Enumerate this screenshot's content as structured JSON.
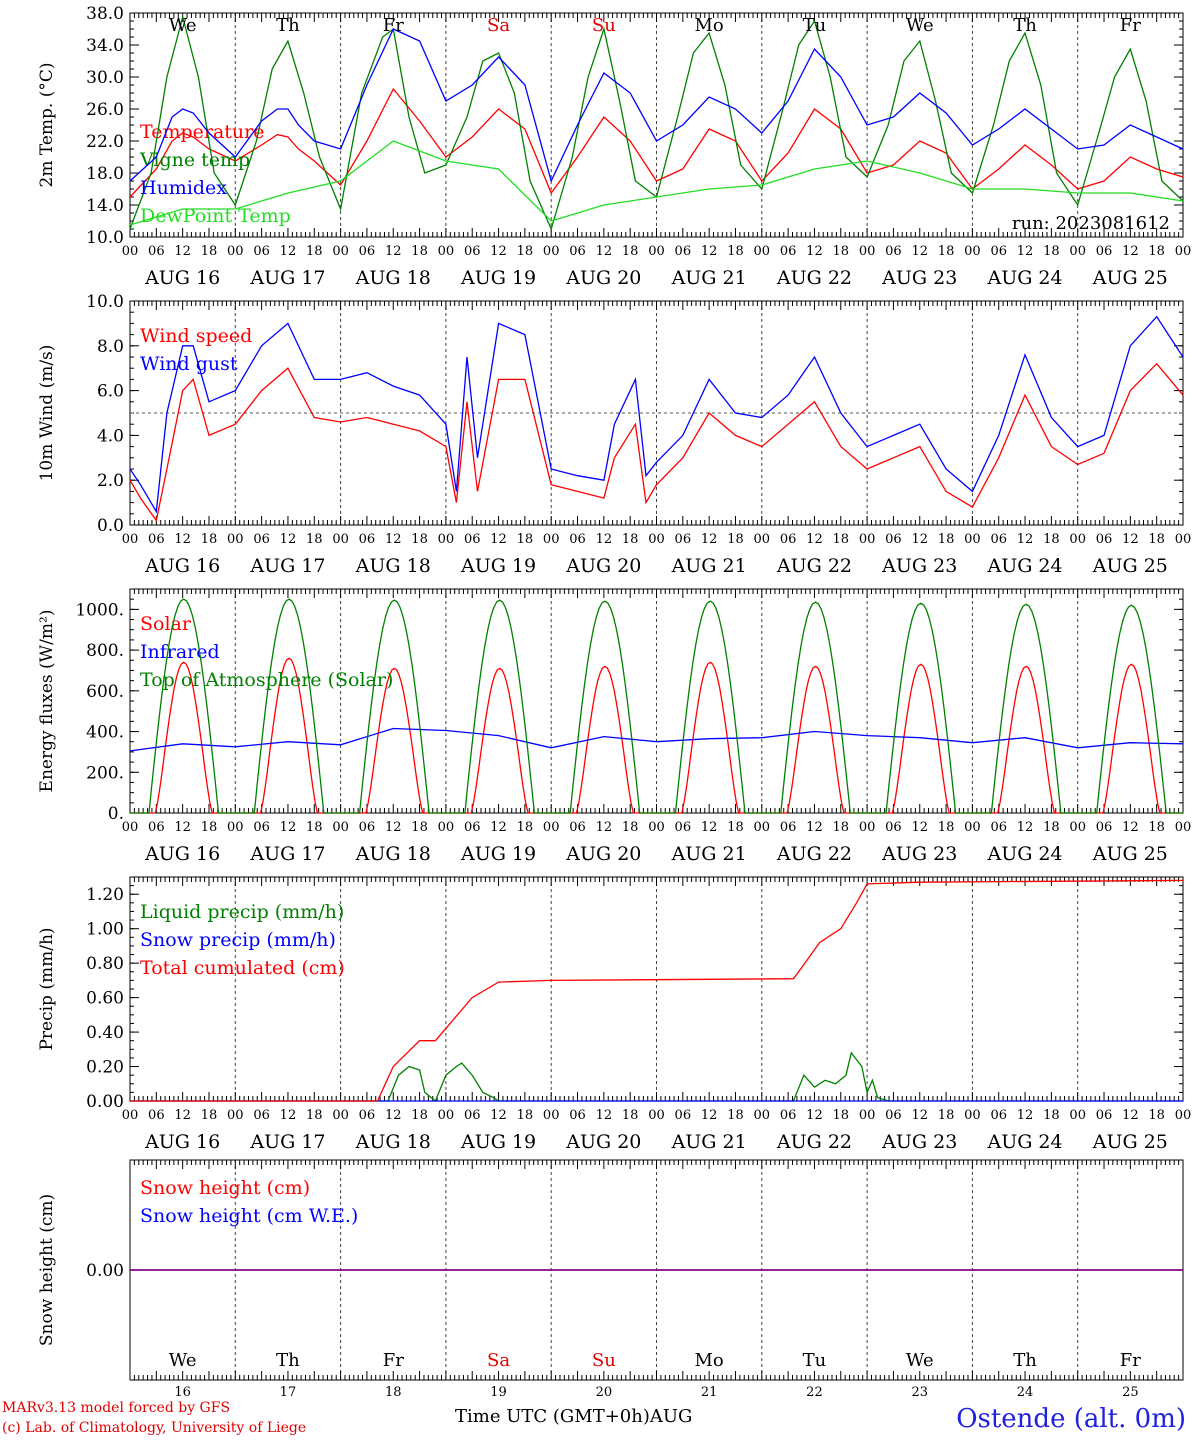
{
  "days": [
    "We",
    "Th",
    "Fr",
    "Sa",
    "Su",
    "Mo",
    "Tu",
    "We",
    "Th",
    "Fr"
  ],
  "weekend_days": [
    "Sa",
    "Su"
  ],
  "dates": [
    "AUG 16",
    "AUG 17",
    "AUG 18",
    "AUG 19",
    "AUG 20",
    "AUG 21",
    "AUG 22",
    "AUG 23",
    "AUG 24",
    "AUG 25"
  ],
  "date_numbers": [
    "16",
    "17",
    "18",
    "19",
    "20",
    "21",
    "22",
    "23",
    "24",
    "25"
  ],
  "hour_ticks": [
    "00",
    "06",
    "12",
    "18"
  ],
  "final_hour_tick": "00",
  "colors": {
    "red": "#ff0000",
    "green": "#008000",
    "blue": "#0000ff",
    "lightgreen": "#22dd22",
    "purple": "#800080",
    "day_red": "#e00000"
  },
  "footer": {
    "model": "MARv3.13 model forced by GFS",
    "credit": "(c) Lab. of Climatology, University of Liege",
    "xlabel": "Time UTC (GMT+0h)",
    "month": "AUG",
    "location": "Ostende (alt. 0m)"
  },
  "chart_data": [
    {
      "type": "line",
      "id": "temperature",
      "ylabel": "2m Temp. (°C)",
      "ylim": [
        10,
        38
      ],
      "yticks": [
        "10.0",
        "14.0",
        "18.0",
        "22.0",
        "26.0",
        "30.0",
        "34.0",
        "38.0"
      ],
      "run_label": "run: 2023081612",
      "x_unit": "days since AUG 16 00 UTC",
      "series": [
        {
          "name": "Temperature",
          "color": "red",
          "x": [
            0,
            0.25,
            0.4,
            0.5,
            0.6,
            0.75,
            1,
            1.25,
            1.4,
            1.5,
            1.6,
            1.75,
            2,
            2.25,
            2.5,
            2.75,
            3,
            3.25,
            3.5,
            3.75,
            4,
            4.25,
            4.5,
            4.75,
            5,
            5.25,
            5.5,
            5.75,
            6,
            6.25,
            6.5,
            6.75,
            7,
            7.25,
            7.5,
            7.75,
            8,
            8.25,
            8.5,
            8.75,
            9,
            9.25,
            9.5,
            9.75,
            10
          ],
          "y": [
            15,
            18.5,
            22,
            23,
            22.5,
            21,
            19.5,
            21.5,
            22.8,
            22.5,
            21,
            19.5,
            16.5,
            22,
            28.5,
            24.5,
            20,
            22.5,
            26,
            23.5,
            15.5,
            20,
            25,
            22,
            17,
            18.5,
            23.5,
            22,
            17,
            20.5,
            26,
            23.5,
            18,
            19,
            22,
            20.5,
            16,
            18.5,
            21.5,
            19,
            16,
            17,
            20,
            18.5,
            17.5
          ]
        },
        {
          "name": "Vigne temp",
          "color": "green",
          "x": [
            0,
            0.2,
            0.35,
            0.5,
            0.65,
            0.8,
            1,
            1.2,
            1.35,
            1.5,
            1.65,
            1.8,
            2,
            2.2,
            2.4,
            2.5,
            2.65,
            2.8,
            3,
            3.2,
            3.35,
            3.5,
            3.65,
            3.8,
            4,
            4.2,
            4.35,
            4.5,
            4.65,
            4.8,
            5,
            5.2,
            5.35,
            5.5,
            5.65,
            5.8,
            6,
            6.2,
            6.35,
            6.5,
            6.65,
            6.8,
            7,
            7.2,
            7.35,
            7.5,
            7.65,
            7.8,
            8,
            8.2,
            8.35,
            8.5,
            8.65,
            8.8,
            9,
            9.2,
            9.35,
            9.5,
            9.65,
            9.8,
            10
          ],
          "y": [
            11,
            18,
            30,
            37.5,
            30,
            18,
            14,
            22,
            31,
            34.5,
            28,
            20,
            13.5,
            28,
            35,
            36,
            25,
            18,
            19,
            25,
            32,
            33,
            28,
            17,
            11,
            20,
            30,
            36,
            27,
            17,
            15,
            25,
            33,
            35.5,
            29,
            19,
            16,
            26,
            34,
            37,
            30,
            20,
            17.5,
            24,
            32,
            34.5,
            27,
            18,
            15.5,
            24,
            32,
            35.5,
            29,
            18,
            14,
            23,
            30,
            33.5,
            27,
            17,
            14.5
          ]
        },
        {
          "name": "Humidex",
          "color": "blue",
          "x": [
            0,
            0.25,
            0.4,
            0.5,
            0.6,
            0.75,
            1,
            1.25,
            1.4,
            1.5,
            1.6,
            1.75,
            2,
            2.25,
            2.5,
            2.75,
            3,
            3.25,
            3.5,
            3.75,
            4,
            4.25,
            4.5,
            4.75,
            5,
            5.25,
            5.5,
            5.75,
            6,
            6.25,
            6.5,
            6.75,
            7,
            7.25,
            7.5,
            7.75,
            8,
            8.25,
            8.5,
            8.75,
            9,
            9.25,
            9.5,
            9.75,
            10
          ],
          "y": [
            17,
            20,
            25,
            26,
            25.5,
            23,
            20,
            24.5,
            26,
            26,
            24,
            22,
            21,
            29,
            36,
            34.5,
            27,
            29,
            32.5,
            29,
            17,
            24,
            30.5,
            28,
            22,
            24,
            27.5,
            26,
            23,
            27,
            33.5,
            30,
            24,
            25,
            28,
            25.5,
            21.5,
            23.5,
            26,
            23.5,
            21,
            21.5,
            24,
            22.5,
            21
          ]
        },
        {
          "name": "DewPoint Temp",
          "color": "lightgreen",
          "x": [
            0,
            0.5,
            1,
            1.5,
            2,
            2.5,
            3,
            3.5,
            4,
            4.5,
            5,
            5.5,
            6,
            6.5,
            7,
            7.5,
            8,
            8.5,
            9,
            9.5,
            10
          ],
          "y": [
            11.5,
            13.5,
            13.5,
            15.5,
            17,
            22,
            19.5,
            18.5,
            12,
            14,
            15,
            16,
            16.5,
            18.5,
            19.5,
            18,
            16,
            16,
            15.5,
            15.5,
            14.5
          ]
        }
      ]
    },
    {
      "type": "line",
      "id": "wind",
      "ylabel": "10m Wind (m/s)",
      "ylim": [
        0,
        10
      ],
      "yticks": [
        "0.0",
        "2.0",
        "4.0",
        "6.0",
        "8.0",
        "10.0"
      ],
      "reference_line": 5,
      "x_unit": "days since AUG 16 00 UTC",
      "series": [
        {
          "name": "Wind speed",
          "color": "red",
          "x": [
            0,
            0.1,
            0.25,
            0.35,
            0.5,
            0.6,
            0.75,
            1,
            1.25,
            1.5,
            1.75,
            2,
            2.25,
            2.5,
            2.75,
            3,
            3.1,
            3.2,
            3.3,
            3.5,
            3.75,
            4,
            4.25,
            4.5,
            4.6,
            4.8,
            4.9,
            5,
            5.25,
            5.5,
            5.75,
            6,
            6.25,
            6.5,
            6.75,
            7,
            7.25,
            7.5,
            7.75,
            8,
            8.25,
            8.5,
            8.75,
            9,
            9.25,
            9.5,
            9.75,
            10
          ],
          "y": [
            2,
            1.2,
            0.2,
            2.5,
            6,
            6.5,
            4,
            4.5,
            6,
            7,
            4.8,
            4.6,
            4.8,
            4.5,
            4.2,
            3.5,
            1.0,
            5.5,
            1.5,
            6.5,
            6.5,
            1.8,
            1.5,
            1.2,
            3,
            4.5,
            1.0,
            1.8,
            3,
            5,
            4,
            3.5,
            4.5,
            5.5,
            3.5,
            2.5,
            3,
            3.5,
            1.5,
            0.8,
            3,
            5.8,
            3.5,
            2.7,
            3.2,
            6,
            7.2,
            5.8
          ]
        },
        {
          "name": "Wind gust",
          "color": "blue",
          "x": [
            0,
            0.1,
            0.25,
            0.35,
            0.5,
            0.6,
            0.75,
            1,
            1.25,
            1.5,
            1.75,
            2,
            2.25,
            2.5,
            2.75,
            3,
            3.1,
            3.2,
            3.3,
            3.5,
            3.75,
            4,
            4.25,
            4.5,
            4.6,
            4.8,
            4.9,
            5,
            5.25,
            5.5,
            5.75,
            6,
            6.25,
            6.5,
            6.75,
            7,
            7.25,
            7.5,
            7.75,
            8,
            8.25,
            8.5,
            8.75,
            9,
            9.25,
            9.5,
            9.75,
            10
          ],
          "y": [
            2.5,
            1.8,
            0.6,
            5,
            8,
            8,
            5.5,
            6,
            8,
            9,
            6.5,
            6.5,
            6.8,
            6.2,
            5.8,
            4.5,
            1.5,
            7.5,
            3,
            9,
            8.5,
            2.5,
            2.2,
            2,
            4.5,
            6.5,
            2.2,
            2.8,
            4,
            6.5,
            5,
            4.8,
            5.8,
            7.5,
            5,
            3.5,
            4,
            4.5,
            2.5,
            1.5,
            4,
            7.6,
            4.8,
            3.5,
            4,
            8,
            9.3,
            7.5
          ]
        }
      ]
    },
    {
      "type": "line",
      "id": "energy",
      "ylabel": "Energy fluxes (W/m²)",
      "ylim": [
        0,
        1100
      ],
      "yticks": [
        "0.",
        "200.",
        "400.",
        "600.",
        "800.",
        "1000."
      ],
      "x_unit": "days since AUG 16 00 UTC",
      "series": [
        {
          "name": "Solar",
          "color": "red",
          "kind": "diurnal",
          "peaks": [
            740,
            760,
            710,
            710,
            720,
            740,
            720,
            730,
            720,
            730
          ]
        },
        {
          "name": "Infrared",
          "color": "blue",
          "x": [
            0,
            0.5,
            1,
            1.5,
            2,
            2.5,
            3,
            3.5,
            4,
            4.5,
            5,
            5.5,
            6,
            6.5,
            7,
            7.5,
            8,
            8.5,
            9,
            9.5,
            10
          ],
          "y": [
            305,
            340,
            325,
            350,
            335,
            415,
            405,
            380,
            320,
            375,
            350,
            365,
            370,
            400,
            380,
            370,
            345,
            370,
            320,
            345,
            340
          ]
        },
        {
          "name": "Top of Atmosphere (Solar)",
          "color": "green",
          "kind": "diurnal",
          "peaks": [
            1050,
            1050,
            1045,
            1045,
            1040,
            1040,
            1035,
            1030,
            1025,
            1020
          ]
        }
      ]
    },
    {
      "type": "line",
      "id": "precip",
      "ylabel": "Precip (mm/h)",
      "ylim": [
        0,
        1.3
      ],
      "yticks": [
        "0.00",
        "0.20",
        "0.40",
        "0.60",
        "0.80",
        "1.00",
        "1.20"
      ],
      "x_unit": "days since AUG 16 00 UTC",
      "series": [
        {
          "name": "Liquid precip (mm/h)",
          "color": "green",
          "x": [
            0,
            2.45,
            2.55,
            2.65,
            2.75,
            2.8,
            2.9,
            3.0,
            3.1,
            3.15,
            3.25,
            3.35,
            3.45,
            3.5,
            6.3,
            6.4,
            6.5,
            6.6,
            6.7,
            6.8,
            6.85,
            6.95,
            7.0,
            7.05,
            7.1,
            7.2,
            10
          ],
          "y": [
            0,
            0,
            0.15,
            0.2,
            0.18,
            0.05,
            0,
            0.15,
            0.2,
            0.22,
            0.15,
            0.05,
            0.02,
            0,
            0,
            0.15,
            0.08,
            0.12,
            0.1,
            0.15,
            0.28,
            0.2,
            0.05,
            0.12,
            0.02,
            0,
            0
          ]
        },
        {
          "name": "Snow precip (mm/h)",
          "color": "blue",
          "x": [
            0,
            10
          ],
          "y": [
            0,
            0
          ]
        },
        {
          "name": "Total cumulated (cm)",
          "color": "red",
          "x": [
            0,
            2.35,
            2.5,
            2.75,
            2.9,
            3.25,
            3.5,
            4.0,
            6.3,
            6.35,
            6.55,
            6.75,
            6.9,
            7.0,
            7.5,
            10
          ],
          "y": [
            0,
            0,
            0.2,
            0.35,
            0.35,
            0.6,
            0.69,
            0.7,
            0.71,
            0.75,
            0.92,
            1.0,
            1.15,
            1.26,
            1.27,
            1.28
          ]
        }
      ]
    },
    {
      "type": "line",
      "id": "snow",
      "ylabel": "Snow height (cm)",
      "ylim": [
        -1,
        1
      ],
      "yticks": [
        "0.00"
      ],
      "x_unit": "days since AUG 16 00 UTC",
      "series": [
        {
          "name": "Snow height (cm)",
          "color": "red",
          "x": [
            0,
            10
          ],
          "y": [
            0,
            0
          ]
        },
        {
          "name": "Snow height (cm W.E.)",
          "color": "blue",
          "x": [
            0,
            10
          ],
          "y": [
            0,
            0
          ]
        }
      ]
    }
  ]
}
